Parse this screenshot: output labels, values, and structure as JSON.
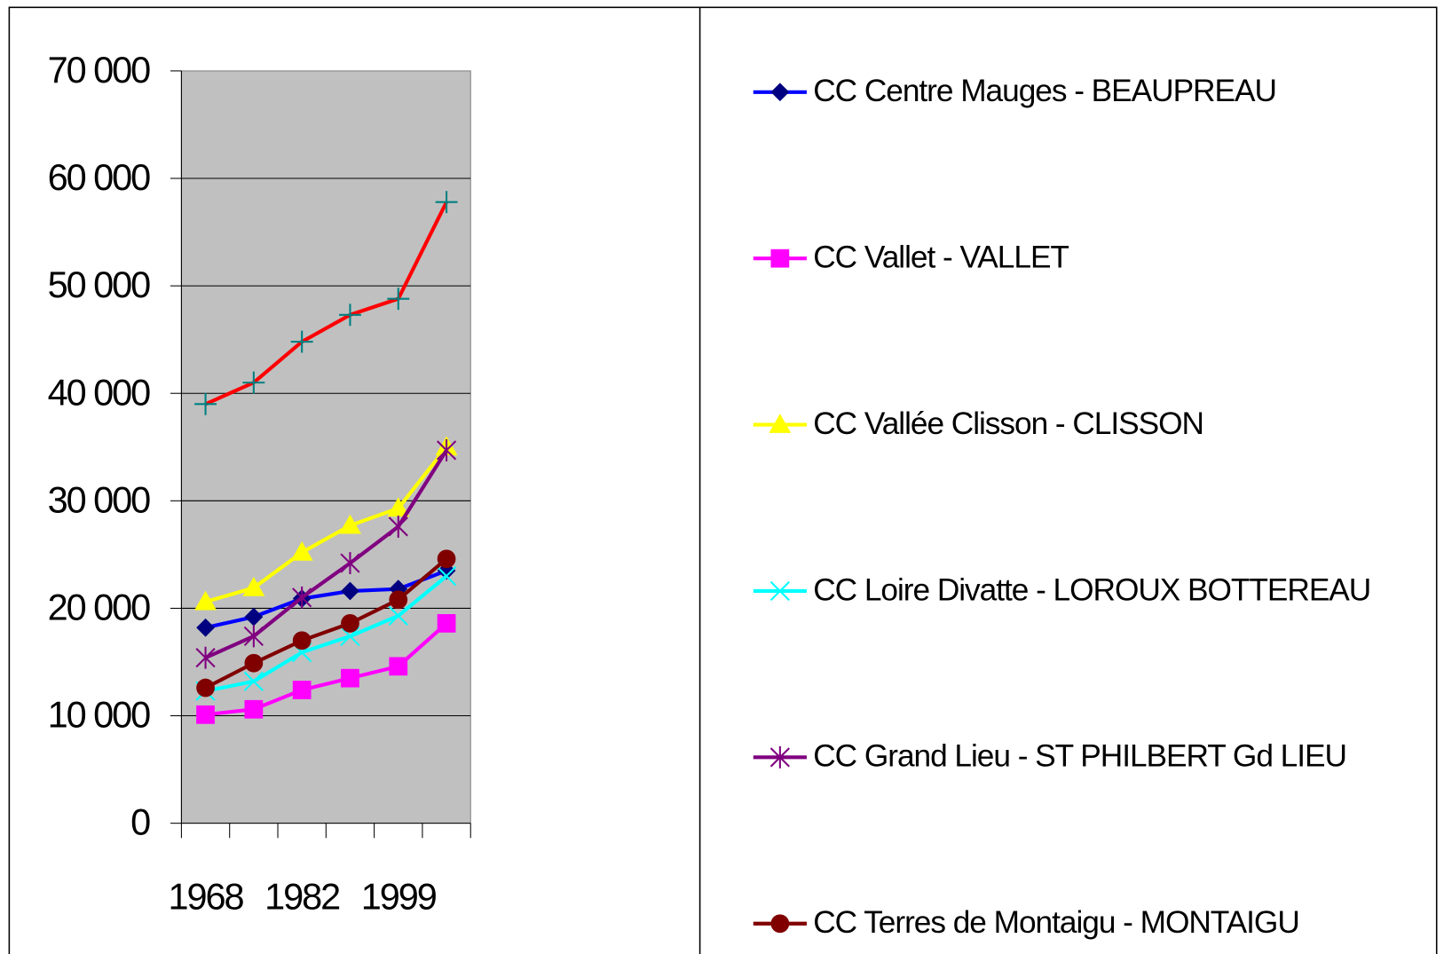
{
  "chart_data": {
    "type": "line",
    "categories": [
      "1968",
      null,
      "1982",
      null,
      "1999",
      null
    ],
    "ylim": [
      0,
      70000
    ],
    "yticks": [
      {
        "value": 0,
        "label": "0"
      },
      {
        "value": 10000,
        "label": "10 000"
      },
      {
        "value": 20000,
        "label": "20 000"
      },
      {
        "value": 30000,
        "label": "30 000"
      },
      {
        "value": 40000,
        "label": "40 000"
      },
      {
        "value": 50000,
        "label": "50 000"
      },
      {
        "value": 60000,
        "label": "60 000"
      },
      {
        "value": 70000,
        "label": "70 000"
      }
    ],
    "grid": true,
    "series": [
      {
        "name": "CC Centre Mauges - BEAUPREAU",
        "color": "#0000ff",
        "marker_color": "#000080",
        "marker": "diamond",
        "values": [
          18200,
          19200,
          20900,
          21600,
          21800,
          23500
        ]
      },
      {
        "name": "CC Vallet - VALLET",
        "color": "#ff00ff",
        "marker_color": "#ff00ff",
        "marker": "square",
        "values": [
          10100,
          10600,
          12400,
          13500,
          14600,
          18600
        ]
      },
      {
        "name": "CC Vallée Clisson - CLISSON",
        "color": "#ffff00",
        "marker_color": "#ffff00",
        "marker": "triangle",
        "values": [
          20600,
          21900,
          25200,
          27700,
          29300,
          35000
        ]
      },
      {
        "name": "CC Loire Divatte - LOROUX BOTTEREAU",
        "color": "#00ffff",
        "marker_color": "#00ffff",
        "marker": "x",
        "values": [
          12300,
          13200,
          15900,
          17400,
          19300,
          23000
        ]
      },
      {
        "name": "CC Grand Lieu - ST PHILBERT Gd LIEU",
        "color": "#800080",
        "marker_color": "#800080",
        "marker": "star",
        "values": [
          15400,
          17400,
          21000,
          24200,
          27600,
          34700
        ]
      },
      {
        "name": "CC Terres de Montaigu - MONTAIGU",
        "color": "#800000",
        "marker_color": "#800000",
        "marker": "circle",
        "values": [
          12600,
          14900,
          17000,
          18600,
          20800,
          24600
        ]
      },
      {
        "color": "#ff0000",
        "marker_color": "#008080",
        "marker": "plus",
        "values": [
          39000,
          41000,
          44800,
          47300,
          48800,
          57800
        ]
      }
    ]
  }
}
